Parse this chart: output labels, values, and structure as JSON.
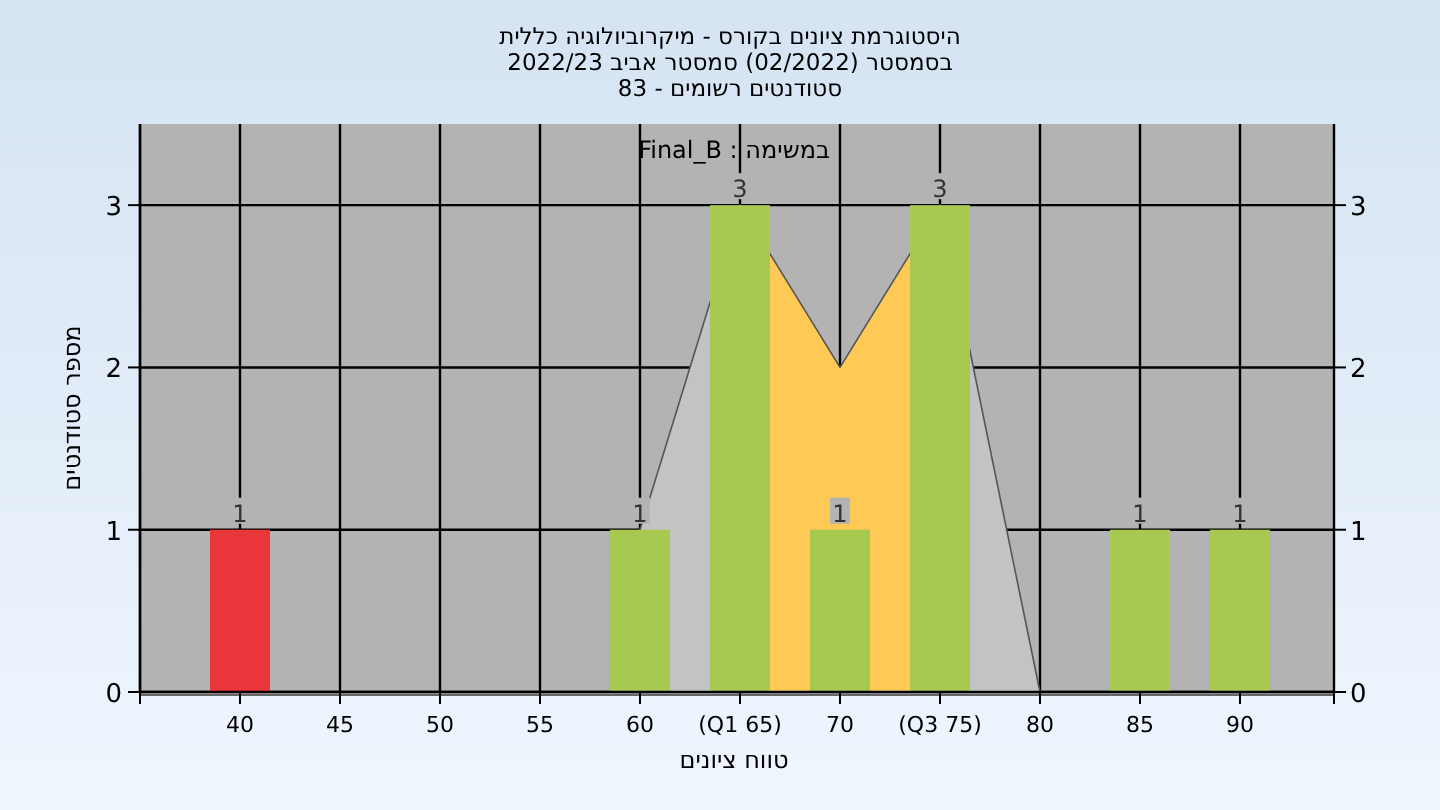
{
  "chart_data": {
    "type": "bar",
    "title": "היסטוגרמת ציונים בקורס - מיקרוביולוגיה כללית\nבסמסטר  (02/2022)  סמסטר אביב 2022/23\nסטודנטים רשומים - 83",
    "xlabel": "טווח ציונים",
    "ylabel": "מספר סטודנטים",
    "annotations": [
      "במשימה : Final_B"
    ],
    "categories": [
      "40",
      "45",
      "50",
      "55",
      "60",
      "(Q1 65)",
      "70",
      "(Q3 75)",
      "80",
      "85",
      "90"
    ],
    "series": [
      {
        "type": "area",
        "color": "#c3c3c3",
        "values": [
          null,
          null,
          null,
          null,
          1,
          3,
          null,
          null,
          null,
          null,
          null
        ]
      },
      {
        "type": "area",
        "color": "#c3c3c3",
        "values": [
          null,
          null,
          null,
          null,
          null,
          null,
          null,
          3,
          0,
          null,
          null
        ]
      },
      {
        "type": "area",
        "color": "#ffc955",
        "values": [
          null,
          null,
          null,
          null,
          null,
          3,
          2,
          3,
          null,
          null,
          null
        ]
      },
      {
        "colors": [
          "#e8363a",
          "#a8c94f",
          "#a8c94f",
          "#a8c94f",
          "#a8c94f",
          "#a8c94f",
          "#a8c94f",
          "#a8c94f",
          "#a8c94f",
          "#a8c94f",
          "#a8c94f"
        ],
        "values": [
          1,
          0,
          0,
          0,
          1,
          3,
          1,
          3,
          0,
          1,
          1
        ],
        "value_labels": [
          "1",
          null,
          null,
          null,
          "1",
          "3",
          "1",
          "3",
          null,
          "1",
          "1"
        ]
      }
    ],
    "ylim": [
      0,
      3.5
    ],
    "yticks": [
      0,
      1,
      2,
      3
    ],
    "y2lim": [
      0,
      3.5
    ],
    "y2ticks": [
      0,
      1,
      2,
      3
    ],
    "grid": true
  }
}
